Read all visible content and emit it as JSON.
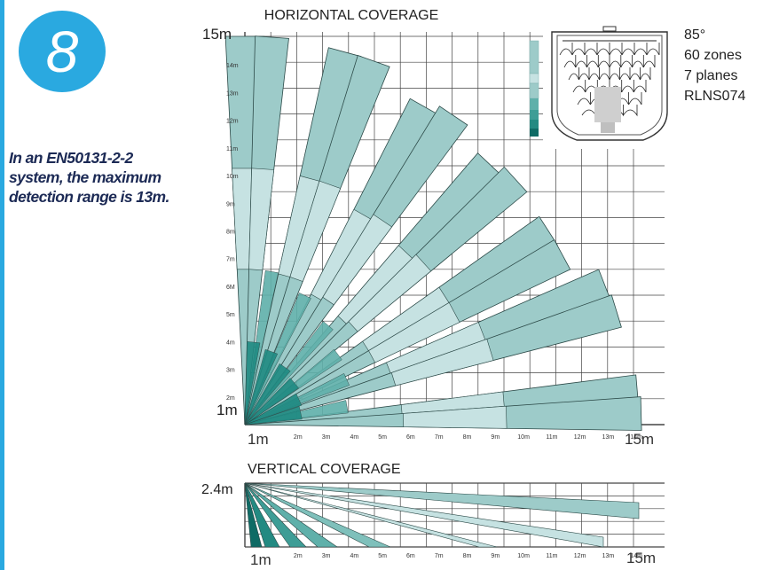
{
  "step_number": "8",
  "note": {
    "line1": "In an EN50131-2-2",
    "line2": "system, the maximum",
    "line3": "detection range is 13m."
  },
  "specs": {
    "angle": "85°",
    "zones": "60 zones",
    "planes": "7 planes",
    "model": "RLNS074"
  },
  "horizontal": {
    "title": "HORIZONTAL COVERAGE",
    "y_ticks": [
      "15m",
      "14m",
      "13m",
      "12m",
      "11m",
      "10m",
      "9m",
      "8m",
      "7m",
      "6M",
      "5m",
      "4m",
      "3m",
      "2m",
      "1m"
    ],
    "x_ticks": [
      "1m",
      "2m",
      "3m",
      "4m",
      "5m",
      "6m",
      "7m",
      "8m",
      "9m",
      "10m",
      "11m",
      "12m",
      "13m",
      "14m",
      "15m"
    ]
  },
  "vertical": {
    "title": "VERTICAL COVERAGE",
    "height_label": "2.4m",
    "x_ticks": [
      "1m",
      "2m",
      "3m",
      "4m",
      "5m",
      "6m",
      "7m",
      "8m",
      "9m",
      "10m",
      "11m",
      "12m",
      "13m",
      "14m",
      "15m"
    ]
  },
  "colors": {
    "beam": "#9dcbc9",
    "beam_light": "#c6e2e2",
    "beam_dark": "#1f8a82",
    "beam_stroke": "#2c4a48",
    "grid": "#444444",
    "accent": "#2aa9e0"
  }
}
